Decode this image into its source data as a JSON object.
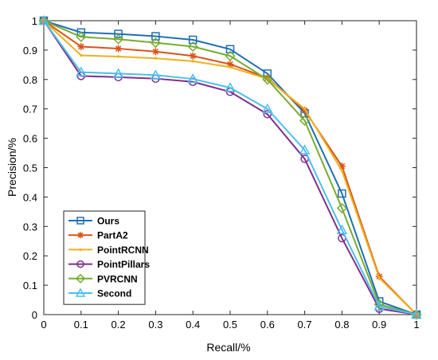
{
  "chart_data": {
    "type": "line",
    "title": "",
    "xlabel": "Recall/%",
    "ylabel": "Precision/%",
    "xlim": [
      0,
      1
    ],
    "ylim": [
      0,
      1
    ],
    "xticks": [
      "0",
      "0.1",
      "0.2",
      "0.3",
      "0.4",
      "0.5",
      "0.6",
      "0.7",
      "0.8",
      "0.9",
      "1"
    ],
    "yticks": [
      "0",
      "0.1",
      "0.2",
      "0.3",
      "0.4",
      "0.5",
      "0.6",
      "0.7",
      "0.8",
      "0.9",
      "1"
    ],
    "grid": false,
    "legend_position": "bottom-left",
    "x": [
      0,
      0.1,
      0.2,
      0.3,
      0.4,
      0.5,
      0.6,
      0.7,
      0.8,
      0.9,
      1.0
    ],
    "series": [
      {
        "name": "Ours",
        "color": "#1f6fb5",
        "marker": "square",
        "values": [
          1.0,
          0.96,
          0.955,
          0.947,
          0.935,
          0.903,
          0.82,
          0.685,
          0.412,
          0.045,
          0.0
        ]
      },
      {
        "name": "PartA2",
        "color": "#d95319",
        "marker": "asterisk",
        "values": [
          1.0,
          0.912,
          0.905,
          0.895,
          0.88,
          0.852,
          0.805,
          0.695,
          0.505,
          0.13,
          0.0
        ]
      },
      {
        "name": "PointRCNN",
        "color": "#edb120",
        "marker": "dot",
        "values": [
          1.0,
          0.882,
          0.878,
          0.872,
          0.862,
          0.842,
          0.802,
          0.7,
          0.49,
          0.125,
          0.0
        ]
      },
      {
        "name": "PointPillars",
        "color": "#7e2f8e",
        "marker": "circle",
        "values": [
          1.0,
          0.812,
          0.808,
          0.803,
          0.792,
          0.758,
          0.682,
          0.53,
          0.26,
          0.02,
          0.0
        ]
      },
      {
        "name": "PVRCNN",
        "color": "#77ac30",
        "marker": "diamond",
        "values": [
          1.0,
          0.945,
          0.937,
          0.925,
          0.912,
          0.88,
          0.8,
          0.66,
          0.362,
          0.035,
          0.0
        ]
      },
      {
        "name": "Second",
        "color": "#4dbeee",
        "marker": "triangle",
        "values": [
          1.0,
          0.825,
          0.82,
          0.815,
          0.802,
          0.772,
          0.7,
          0.56,
          0.288,
          0.028,
          0.0
        ]
      }
    ]
  }
}
